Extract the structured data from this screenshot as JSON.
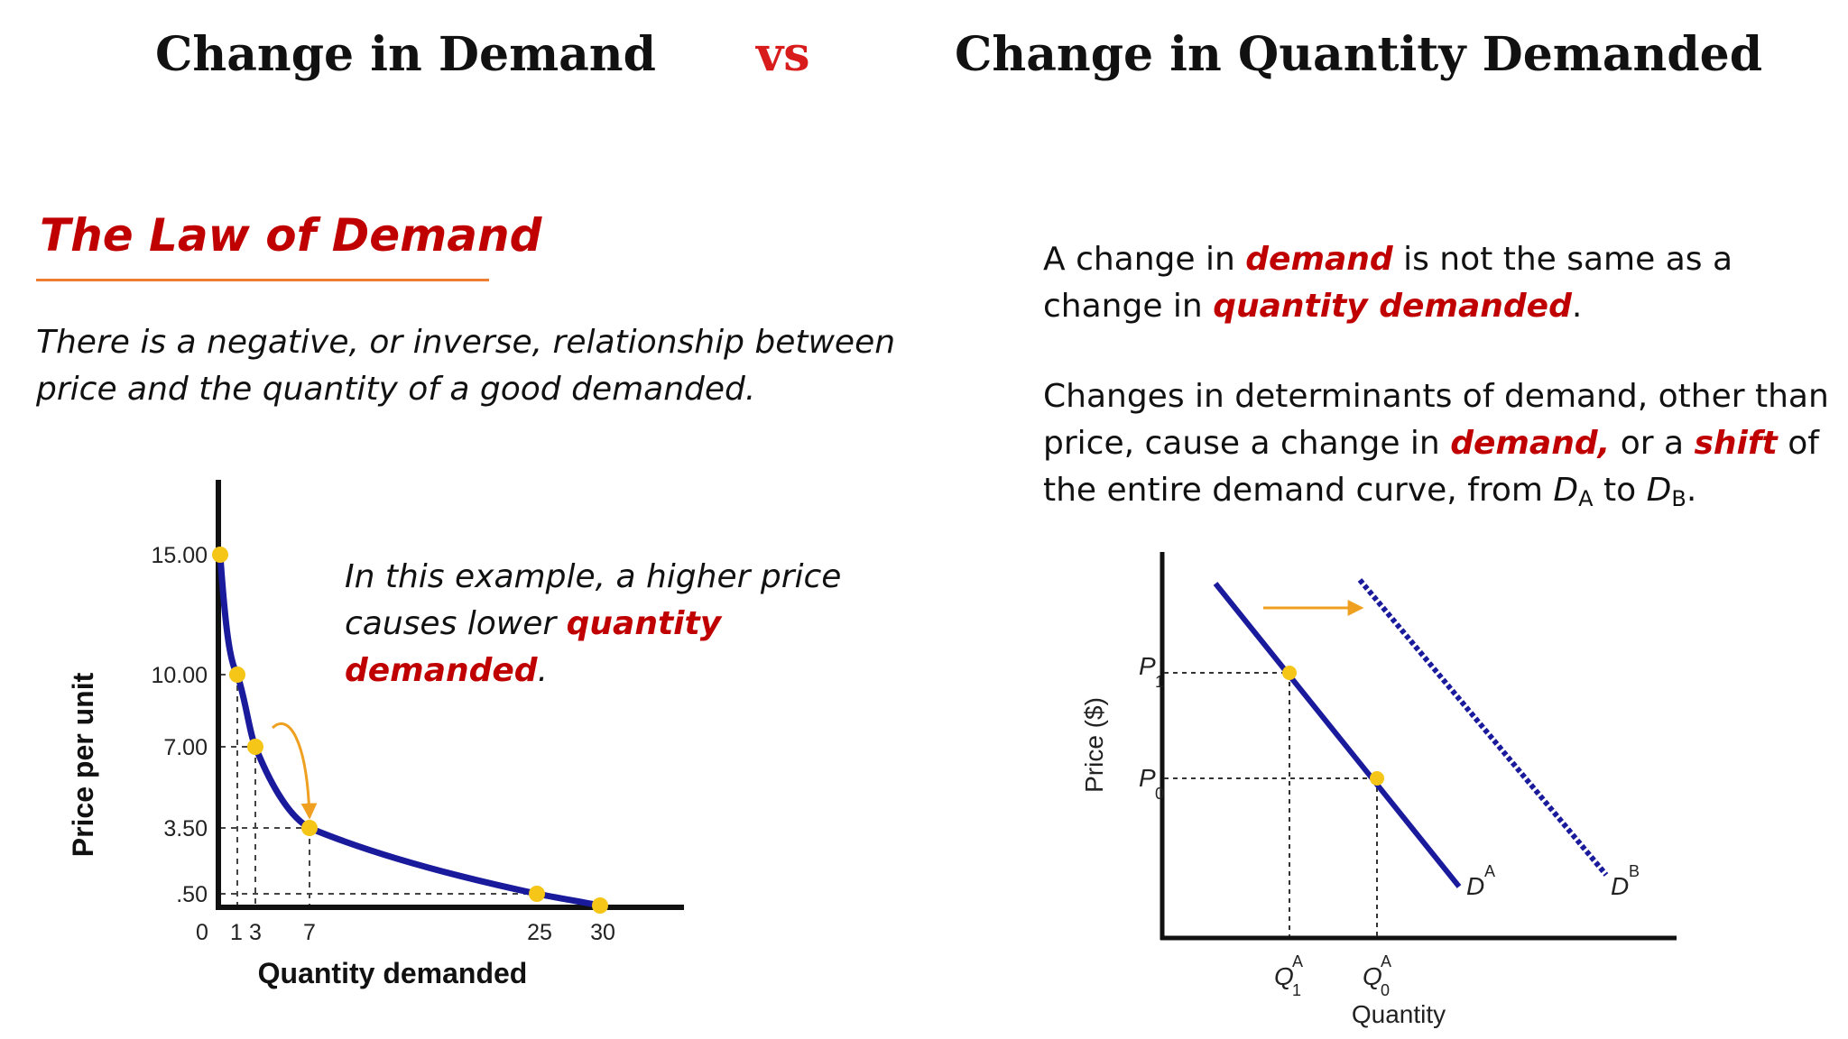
{
  "header": {
    "left_title": "Change in Demand",
    "vs": "vs",
    "right_title": "Change in Quantity Demanded"
  },
  "law": {
    "title": "The Law of Demand",
    "text": "There is a negative, or inverse, relationship between price and the quantity of a good demanded."
  },
  "example": {
    "text_before": "In this example, a higher price causes lower ",
    "highlight": "quantity demanded",
    "text_after": "."
  },
  "right": {
    "p1_a": "A change in ",
    "p1_demand": "demand",
    "p1_b": " is not the same as a change in ",
    "p1_qd": "quantity demanded",
    "p1_c": ".",
    "p2_a": "Changes in determinants of demand, other than price, cause a change in ",
    "p2_demand": "demand,",
    "p2_b": " or a ",
    "p2_shift": "shift",
    "p2_c": " of the entire demand curve, from ",
    "d": "D",
    "sub_a": "A",
    "to": " to ",
    "sub_b": "B",
    "end": "."
  },
  "left_chart": {
    "ylabel": "Price per unit",
    "xlabel": "Quantity demanded",
    "y_ticks": [
      "15.00",
      "10.00",
      "7.00",
      "3.50",
      ".50"
    ],
    "x_ticks": [
      "0",
      "1",
      "3",
      "7",
      "25",
      "30"
    ]
  },
  "right_chart": {
    "ylabel": "Price ($)",
    "xlabel": "Quantity",
    "p1": "P",
    "p1_sub": "1",
    "p0": "P",
    "p0_sub": "0",
    "q1": "Q",
    "q1_sub": "1",
    "q1_sup": "A",
    "q0": "Q",
    "q0_sub": "0",
    "q0_sup": "A",
    "da": "D",
    "da_sup": "A",
    "db": "D",
    "db_sup": "B"
  },
  "colors": {
    "accent_red": "#c00000",
    "vs_red": "#d81b1b",
    "curve_blue": "#1a1a9c",
    "point_yellow": "#f5c518",
    "arrow_orange": "#f0a020",
    "underline_orange": "#ee7d31"
  }
}
